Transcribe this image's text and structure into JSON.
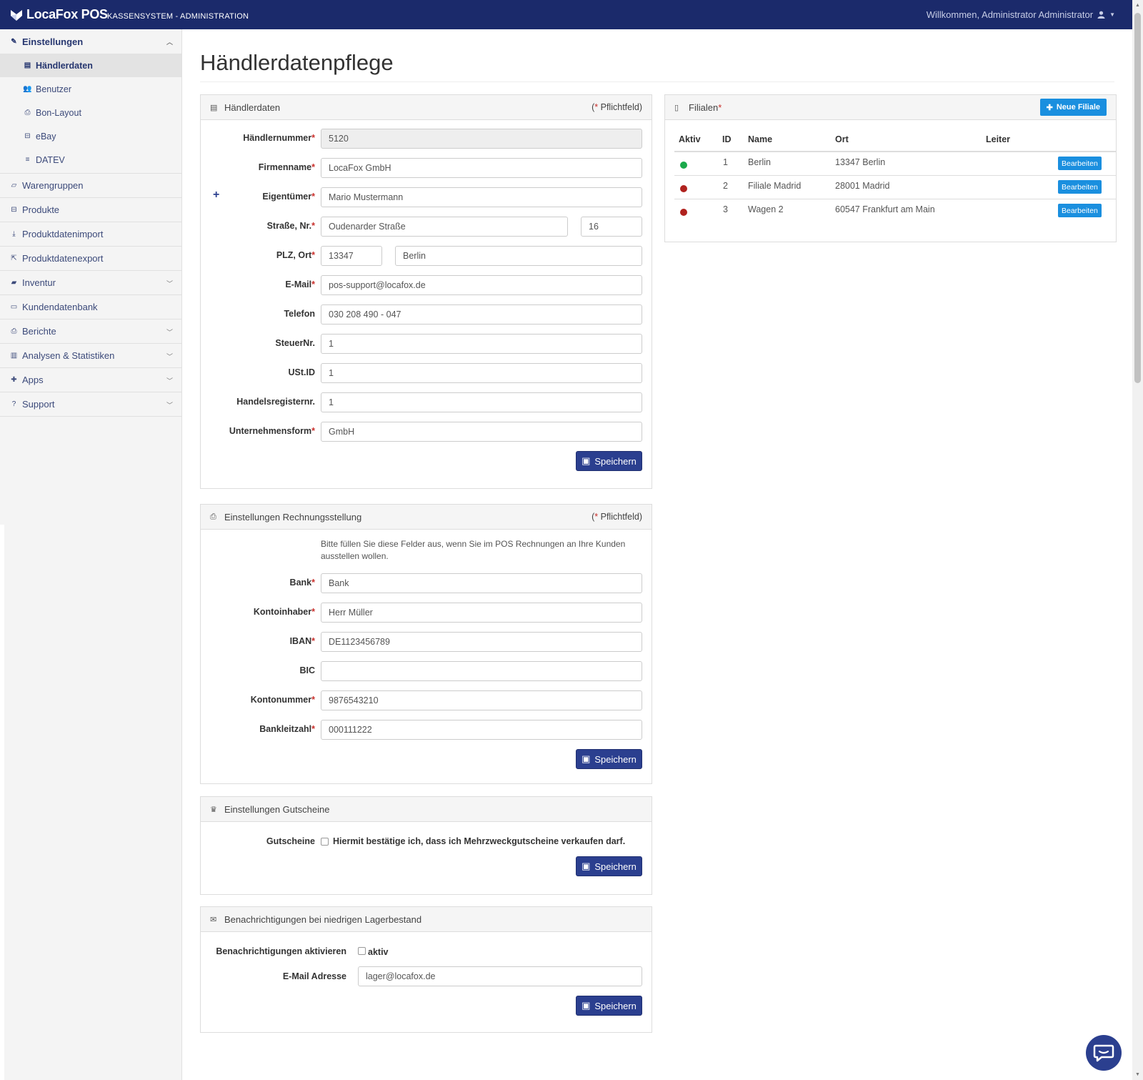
{
  "topbar": {
    "logo_text": "LocaFox POS",
    "subtitle": "KASSENSYSTEM - ADMINISTRATION",
    "welcome": "Willkommen, Administrator Administrator"
  },
  "sidebar": {
    "settings": {
      "label": "Einstellungen",
      "items": [
        {
          "label": "Händlerdaten"
        },
        {
          "label": "Benutzer"
        },
        {
          "label": "Bon-Layout"
        },
        {
          "label": "eBay"
        },
        {
          "label": "DATEV"
        }
      ]
    },
    "items": [
      {
        "label": "Warengruppen"
      },
      {
        "label": "Produkte"
      },
      {
        "label": "Produktdatenimport"
      },
      {
        "label": "Produktdatenexport"
      },
      {
        "label": "Inventur"
      },
      {
        "label": "Kundendatenbank"
      },
      {
        "label": "Berichte"
      },
      {
        "label": "Analysen & Statistiken"
      },
      {
        "label": "Apps"
      },
      {
        "label": "Support"
      }
    ]
  },
  "page": {
    "title": "Händlerdatenpflege"
  },
  "haendlerdaten": {
    "title": "Händlerdaten",
    "required_note": "Pflichtfeld",
    "save": "Speichern",
    "fields": {
      "haendlernummer": {
        "label": "Händlernummer",
        "value": "5120"
      },
      "firmenname": {
        "label": "Firmenname",
        "value": "LocaFox GmbH"
      },
      "eigentuemer": {
        "label": "Eigentümer",
        "value": "Mario Mustermann"
      },
      "strasse": {
        "label": "Straße, Nr.",
        "value": "Oudenarder Straße",
        "nr": "16"
      },
      "plz_ort": {
        "label": "PLZ, Ort",
        "plz": "13347",
        "ort": "Berlin"
      },
      "email": {
        "label": "E-Mail",
        "value": "pos-support@locafox.de"
      },
      "telefon": {
        "label": "Telefon",
        "value": "030 208 490 - 047"
      },
      "steuernr": {
        "label": "SteuerNr.",
        "value": "1"
      },
      "ustid": {
        "label": "USt.ID",
        "value": "1"
      },
      "handelsregister": {
        "label": "Handelsregisternr.",
        "value": "1"
      },
      "unternehmensform": {
        "label": "Unternehmensform",
        "value": "GmbH"
      }
    }
  },
  "filialen": {
    "title": "Filialen",
    "new_button": "Neue Filiale",
    "columns": [
      "Aktiv",
      "ID",
      "Name",
      "Ort",
      "Leiter"
    ],
    "rows": [
      {
        "active": true,
        "id": "1",
        "name": "Berlin",
        "ort": "13347 Berlin",
        "leiter": "",
        "action": "Bearbeiten"
      },
      {
        "active": false,
        "id": "2",
        "name": "Filiale Madrid",
        "ort": "28001 Madrid",
        "leiter": "",
        "action": "Bearbeiten"
      },
      {
        "active": false,
        "id": "3",
        "name": "Wagen 2",
        "ort": "60547 Frankfurt am Main",
        "leiter": "",
        "action": "Bearbeiten"
      }
    ],
    "colors": {
      "active": "#1aa94a",
      "inactive": "#b0221e"
    }
  },
  "rechnung": {
    "title": "Einstellungen Rechnungsstellung",
    "required_note": "Pflichtfeld",
    "hint": "Bitte füllen Sie diese Felder aus, wenn Sie im POS Rechnungen an Ihre Kunden ausstellen wollen.",
    "save": "Speichern",
    "fields": {
      "bank": {
        "label": "Bank",
        "value": "Bank"
      },
      "kontoinhaber": {
        "label": "Kontoinhaber",
        "value": "Herr Müller"
      },
      "iban": {
        "label": "IBAN",
        "value": "DE1123456789"
      },
      "bic": {
        "label": "BIC",
        "value": ""
      },
      "kontonummer": {
        "label": "Kontonummer",
        "value": "9876543210"
      },
      "blz": {
        "label": "Bankleitzahl",
        "value": "000111222"
      }
    }
  },
  "gutscheine": {
    "title": "Einstellungen Gutscheine",
    "label": "Gutscheine",
    "checkbox_text": "Hiermit bestätige ich, dass ich Mehrzweckgutscheine verkaufen darf.",
    "checked": false,
    "save": "Speichern"
  },
  "lager": {
    "title": "Benachrichtigungen bei niedrigen Lagerbestand",
    "activate_label": "Benachrichtigungen aktivieren",
    "activate_text": "aktiv",
    "checked": false,
    "email_label": "E-Mail Adresse",
    "email_value": "lager@locafox.de",
    "save": "Speichern"
  },
  "icons": {
    "brand": "fox-logo-icon",
    "user": "user-icon",
    "chat": "chat-icon"
  },
  "theme": {
    "navbar": "#1b2a6b",
    "primary_button": "#2b3f8f",
    "accent": "#1a8fdf",
    "required": "#c9302c"
  }
}
